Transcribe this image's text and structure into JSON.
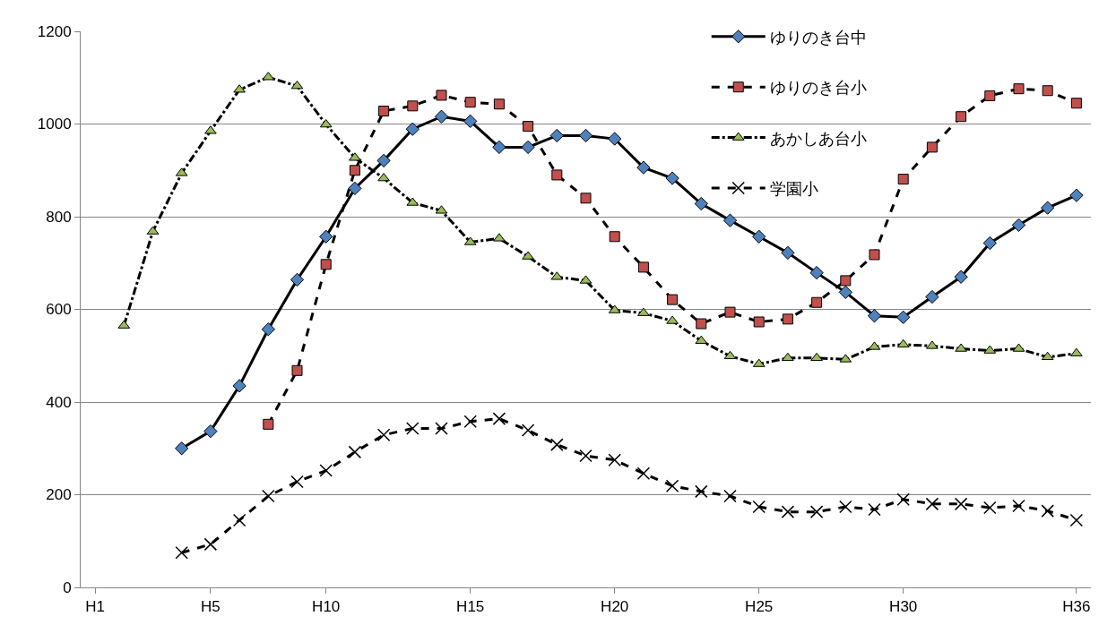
{
  "chart_data": {
    "type": "line",
    "categories": [
      "H1",
      null,
      null,
      null,
      "H5",
      null,
      null,
      null,
      "H10",
      null,
      null,
      null,
      null,
      "H15",
      null,
      null,
      null,
      null,
      "H20",
      null,
      null,
      null,
      null,
      "H25",
      null,
      null,
      null,
      null,
      "H30",
      null,
      null,
      null,
      null,
      null,
      "H36"
    ],
    "series": [
      {
        "name": "ゆりのき台中",
        "color": "#4f81bd",
        "marker": "diamond",
        "line_style": "solid",
        "values": [
          null,
          null,
          null,
          300,
          337,
          435,
          557,
          664,
          757,
          861,
          921,
          989,
          1016,
          1006,
          950,
          950,
          975,
          975,
          968,
          906,
          883,
          828,
          792,
          757,
          722,
          679,
          637,
          586,
          583,
          627,
          670,
          743,
          782,
          819,
          846
        ]
      },
      {
        "name": "ゆりのき台小",
        "color": "#c0504d",
        "marker": "square",
        "line_style": "dashed",
        "values": [
          null,
          null,
          null,
          null,
          null,
          null,
          352,
          468,
          697,
          900,
          1028,
          1039,
          1062,
          1047,
          1043,
          995,
          890,
          840,
          757,
          691,
          621,
          569,
          594,
          573,
          579,
          615,
          662,
          718,
          881,
          950,
          1016,
          1061,
          1076,
          1072,
          1045
        ]
      },
      {
        "name": "あかしあ台小",
        "color": "#9bbb59",
        "marker": "triangle",
        "line_style": "dashdot",
        "values": [
          null,
          565,
          768,
          894,
          985,
          1074,
          1101,
          1082,
          999,
          927,
          883,
          830,
          813,
          745,
          753,
          714,
          670,
          662,
          598,
          592,
          575,
          532,
          499,
          482,
          495,
          495,
          492,
          519,
          524,
          521,
          515,
          511,
          515,
          497,
          505
        ]
      },
      {
        "name": "学園小",
        "color": "#000000",
        "marker": "cross",
        "line_style": "dashed",
        "values": [
          null,
          null,
          null,
          75,
          93,
          145,
          197,
          228,
          252,
          292,
          329,
          343,
          343,
          358,
          364,
          339,
          308,
          284,
          275,
          246,
          219,
          207,
          197,
          174,
          163,
          163,
          174,
          168,
          190,
          180,
          180,
          172,
          176,
          165,
          145
        ]
      }
    ],
    "ylim": [
      0,
      1200
    ],
    "yticks": [
      0,
      200,
      400,
      600,
      800,
      1000,
      1200
    ],
    "grid": "y",
    "legend": "top right"
  }
}
